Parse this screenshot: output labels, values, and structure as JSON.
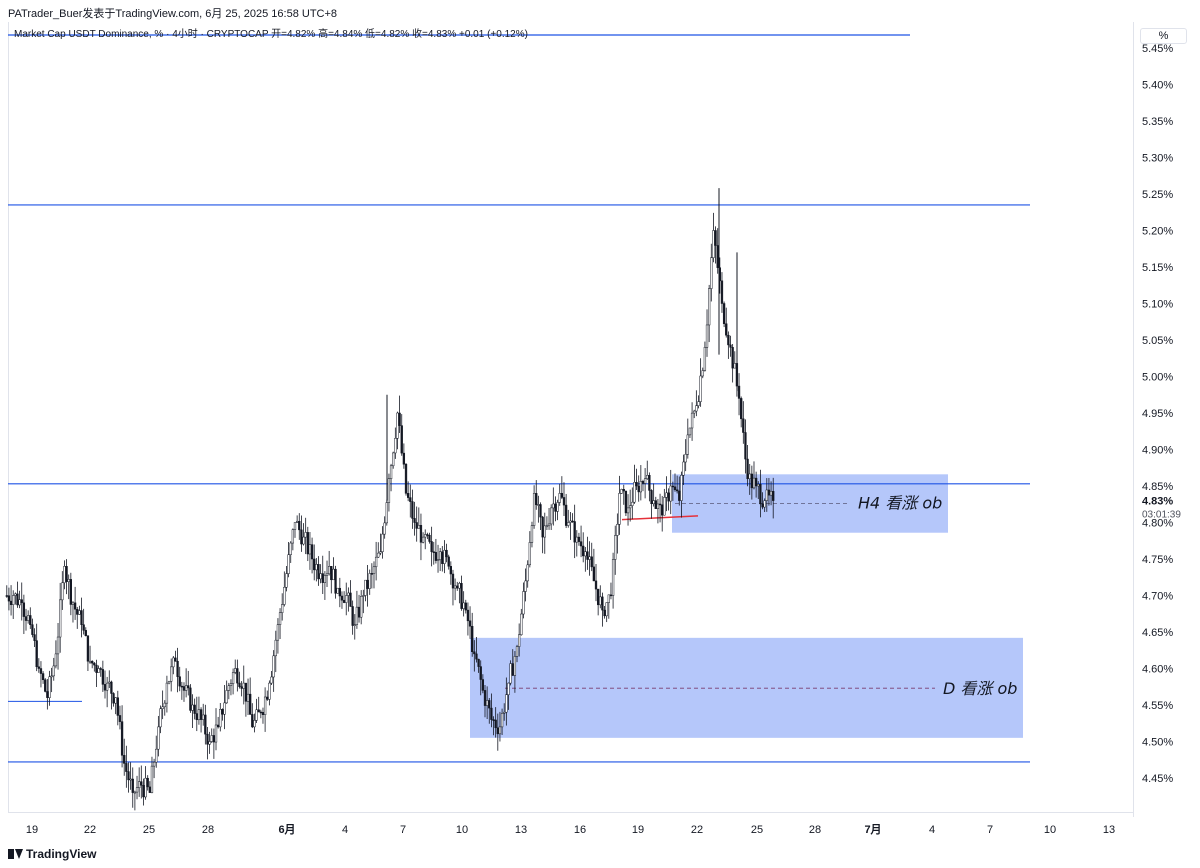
{
  "header": {
    "publisher": "PATrader_Buer发表于TradingView.com, 6月 25, 2025 16:58 UTC+8",
    "symbol_line": "Market Cap USDT Dominance, % · 4小时 · CRYPTOCAP  开=4.82%  高=4.84%  低=4.82%  收=4.83%  +0.01 (+0.12%)"
  },
  "price_axis": {
    "unit_label": "%",
    "ticks": [
      "5.45%",
      "5.40%",
      "5.35%",
      "5.30%",
      "5.25%",
      "5.20%",
      "5.15%",
      "5.10%",
      "5.05%",
      "5.00%",
      "4.95%",
      "4.90%",
      "4.85%",
      "4.80%",
      "4.75%",
      "4.70%",
      "4.65%",
      "4.60%",
      "4.55%",
      "4.50%",
      "4.45%"
    ],
    "last_price": "4.83%",
    "countdown": "03:01:39"
  },
  "time_axis": {
    "ticks": [
      "19",
      "22",
      "25",
      "28",
      "6月",
      "4",
      "7",
      "10",
      "13",
      "16",
      "19",
      "22",
      "25",
      "28",
      "7月",
      "4",
      "7",
      "10",
      "13"
    ]
  },
  "annotations": {
    "h4_label": "H4 看涨 ob",
    "d_label": "D 看涨 ob"
  },
  "colors": {
    "up": "#089981",
    "down": "#131722",
    "hline": "#1e53e5",
    "zone": "#a8bdf9",
    "red_line": "#e5313a",
    "grid": "#f0f3fa"
  },
  "footer": {
    "brand": "TradingView"
  },
  "chart_data": {
    "type": "candlestick",
    "title": "Market Cap USDT Dominance, %",
    "ylim": [
      4.435,
      5.465
    ],
    "price_lines": [
      5.235,
      4.853,
      4.472
    ],
    "zones": [
      {
        "name": "H4 看涨 ob",
        "top": 4.866,
        "bottom": 4.786,
        "mid": 4.826
      },
      {
        "name": "D 看涨 ob",
        "top": 4.642,
        "bottom": 4.505,
        "mid": 4.573
      }
    ],
    "close_series": [
      4.7,
      4.69,
      4.66,
      4.6,
      4.56,
      4.62,
      4.74,
      4.69,
      4.66,
      4.61,
      4.6,
      4.58,
      4.56,
      4.47,
      4.43,
      4.44,
      4.43,
      4.52,
      4.58,
      4.61,
      4.57,
      4.55,
      4.53,
      4.5,
      4.52,
      4.57,
      4.6,
      4.58,
      4.52,
      4.54,
      4.58,
      4.66,
      4.73,
      4.8,
      4.78,
      4.75,
      4.73,
      4.74,
      4.71,
      4.7,
      4.66,
      4.7,
      4.73,
      4.76,
      4.86,
      4.95,
      4.84,
      4.8,
      4.78,
      4.76,
      4.76,
      4.74,
      4.71,
      4.68,
      4.62,
      4.57,
      4.53,
      4.52,
      4.58,
      4.63,
      4.72,
      4.84,
      4.78,
      4.82,
      4.84,
      4.8,
      4.78,
      4.76,
      4.72,
      4.68,
      4.7,
      4.84,
      4.82,
      4.85,
      4.86,
      4.83,
      4.81,
      4.85,
      4.83,
      4.92,
      4.96,
      5.04,
      5.2,
      5.1,
      5.04,
      4.97,
      4.86,
      4.85,
      4.83,
      4.83
    ]
  }
}
